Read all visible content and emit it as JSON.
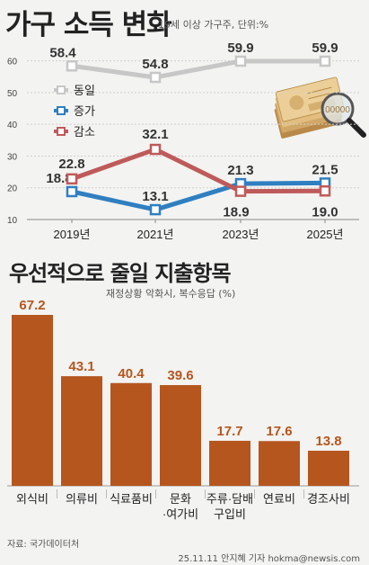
{
  "title": "가구 소득 변화",
  "subtitle": "19세 이상 가구주, 단위:%",
  "title2": "우선적으로 줄일 지출항목",
  "subtitle2": "재정상황 악화시, 복수응답 (%)",
  "source": "자료: 국가데이터처",
  "credit": "25.11.11 안지혜 기자 hokma@newsis.com",
  "colors": {
    "same": "#c7c7c7",
    "increase": "#2f7fc1",
    "decrease": "#bf5a5a",
    "bar": "#b5561f",
    "grid": "#cfcfcf"
  },
  "chart_data": [
    {
      "type": "line",
      "title": "가구 소득 변화",
      "x": [
        "2019년",
        "2021년",
        "2023년",
        "2025년"
      ],
      "yticks": [
        10,
        20,
        30,
        40,
        50,
        60
      ],
      "ylim": [
        10,
        65
      ],
      "legend_position": "left",
      "series": [
        {
          "name": "동일",
          "values": [
            58.4,
            54.8,
            59.9,
            59.9
          ],
          "color": "#c7c7c7"
        },
        {
          "name": "증가",
          "values": [
            18.8,
            13.1,
            21.3,
            21.5
          ],
          "color": "#2f7fc1"
        },
        {
          "name": "감소",
          "values": [
            22.8,
            32.1,
            18.9,
            19.0
          ],
          "color": "#bf5a5a"
        }
      ]
    },
    {
      "type": "bar",
      "title": "우선적으로 줄일 지출항목",
      "categories": [
        "외식비",
        "의류비",
        "식료품비",
        "문화·여가비",
        "주류·담배 구입비",
        "연료비",
        "경조사비"
      ],
      "category_lines": [
        [
          "외식비"
        ],
        [
          "의류비"
        ],
        [
          "식료품비"
        ],
        [
          "문화",
          "·여가비"
        ],
        [
          "주류·담배",
          "구입비"
        ],
        [
          "연료비"
        ],
        [
          "경조사비"
        ]
      ],
      "values": [
        67.2,
        43.1,
        40.4,
        39.6,
        17.7,
        17.6,
        13.8
      ],
      "value_labels": [
        "67.2",
        "43.1",
        "40.4",
        "39.6",
        "17.7",
        "17.6",
        "13.8"
      ],
      "ylim": [
        0,
        70
      ]
    }
  ]
}
